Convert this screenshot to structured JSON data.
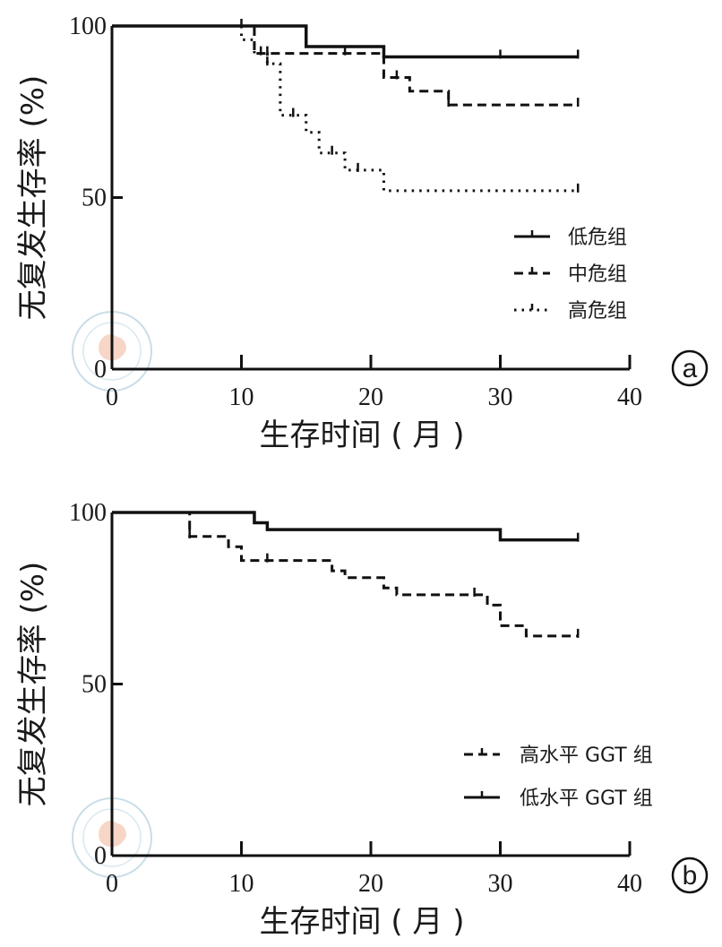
{
  "chart_data": [
    {
      "type": "line",
      "step": true,
      "panel_label": "a",
      "xlabel": "生存时间 ( 月 )",
      "ylabel": "无复发生存率 (%)",
      "xlim": [
        0,
        40
      ],
      "ylim": [
        0,
        100
      ],
      "xticks": [
        "0",
        "10",
        "20",
        "30",
        "40"
      ],
      "yticks": [
        "0",
        "50",
        "100"
      ],
      "legend_position": "right",
      "series": [
        {
          "name": "低危组",
          "style": "solid",
          "x": [
            0,
            15,
            21,
            36
          ],
          "y": [
            100,
            94,
            91,
            91
          ],
          "censor_x": [
            30,
            36
          ]
        },
        {
          "name": "中危组",
          "style": "dashed",
          "x": [
            0,
            11,
            21,
            23,
            26,
            36
          ],
          "y": [
            100,
            92,
            85,
            81,
            77,
            77
          ],
          "censor_x": [
            10,
            11.5,
            12,
            18,
            22,
            26,
            36
          ]
        },
        {
          "name": "高危组",
          "style": "dotted",
          "x": [
            0,
            10,
            11,
            12,
            13,
            15,
            16,
            18,
            21,
            36
          ],
          "y": [
            100,
            96,
            92,
            89,
            74,
            69,
            63,
            58,
            52,
            52
          ],
          "censor_x": [
            12,
            14,
            17,
            19,
            36
          ]
        }
      ]
    },
    {
      "type": "line",
      "step": true,
      "panel_label": "b",
      "xlabel": "生存时间 ( 月 )",
      "ylabel": "无复发生存率 (%)",
      "xlim": [
        0,
        40
      ],
      "ylim": [
        0,
        100
      ],
      "xticks": [
        "0",
        "10",
        "20",
        "30",
        "40"
      ],
      "yticks": [
        "0",
        "50",
        "100"
      ],
      "legend_position": "right",
      "series": [
        {
          "name": "高水平 GGT 组",
          "style": "dashed",
          "x": [
            0,
            6,
            9,
            10,
            17,
            18,
            21,
            22,
            29,
            30,
            32,
            36
          ],
          "y": [
            100,
            93,
            90,
            86,
            83,
            81,
            78,
            76,
            73,
            67,
            64,
            64
          ],
          "censor_x": [
            6,
            12,
            28,
            36
          ]
        },
        {
          "name": "低水平 GGT 组",
          "style": "solid",
          "x": [
            0,
            11,
            12,
            30,
            36
          ],
          "y": [
            100,
            97,
            95,
            92,
            92
          ],
          "censor_x": [
            36
          ]
        }
      ]
    }
  ]
}
